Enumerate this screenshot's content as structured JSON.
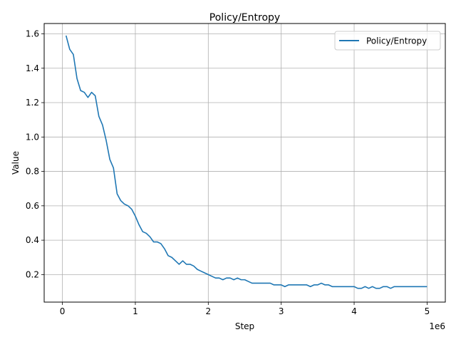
{
  "chart_data": {
    "type": "line",
    "title": "Policy/Entropy",
    "xlabel": "Step",
    "ylabel": "Value",
    "x_offset_label": "1e6",
    "xlim": [
      -250000,
      5250000
    ],
    "ylim": [
      0.04,
      1.66
    ],
    "xticks": [
      0,
      1000000,
      2000000,
      3000000,
      4000000,
      5000000
    ],
    "xtick_labels": [
      "0",
      "1",
      "2",
      "3",
      "4",
      "5"
    ],
    "yticks": [
      0.2,
      0.4,
      0.6,
      0.8,
      1.0,
      1.2,
      1.4,
      1.6
    ],
    "ytick_labels": [
      "0.2",
      "0.4",
      "0.6",
      "0.8",
      "1.0",
      "1.2",
      "1.4",
      "1.6"
    ],
    "grid": true,
    "legend_position": "top-right",
    "series": [
      {
        "name": "Policy/Entropy",
        "color": "#1f77b4",
        "x": [
          50000,
          100000,
          150000,
          200000,
          250000,
          300000,
          350000,
          400000,
          450000,
          500000,
          550000,
          600000,
          650000,
          700000,
          750000,
          800000,
          850000,
          900000,
          950000,
          1000000,
          1050000,
          1100000,
          1150000,
          1200000,
          1250000,
          1300000,
          1350000,
          1400000,
          1450000,
          1500000,
          1550000,
          1600000,
          1650000,
          1700000,
          1750000,
          1800000,
          1850000,
          1900000,
          1950000,
          2000000,
          2050000,
          2100000,
          2150000,
          2200000,
          2250000,
          2300000,
          2350000,
          2400000,
          2450000,
          2500000,
          2550000,
          2600000,
          2650000,
          2700000,
          2750000,
          2800000,
          2850000,
          2900000,
          2950000,
          3000000,
          3050000,
          3100000,
          3150000,
          3200000,
          3250000,
          3300000,
          3350000,
          3400000,
          3450000,
          3500000,
          3550000,
          3600000,
          3650000,
          3700000,
          3750000,
          3800000,
          3850000,
          3900000,
          3950000,
          4000000,
          4050000,
          4100000,
          4150000,
          4200000,
          4250000,
          4300000,
          4350000,
          4400000,
          4450000,
          4500000,
          4550000,
          4600000,
          4650000,
          4700000,
          4750000,
          4800000,
          4850000,
          4900000,
          4950000,
          5000000
        ],
        "values": [
          1.59,
          1.51,
          1.48,
          1.34,
          1.27,
          1.26,
          1.23,
          1.26,
          1.24,
          1.12,
          1.07,
          0.98,
          0.87,
          0.82,
          0.67,
          0.63,
          0.61,
          0.6,
          0.58,
          0.54,
          0.49,
          0.45,
          0.44,
          0.42,
          0.39,
          0.39,
          0.38,
          0.35,
          0.31,
          0.3,
          0.28,
          0.26,
          0.28,
          0.26,
          0.26,
          0.25,
          0.23,
          0.22,
          0.21,
          0.2,
          0.19,
          0.18,
          0.18,
          0.17,
          0.18,
          0.18,
          0.17,
          0.18,
          0.17,
          0.17,
          0.16,
          0.15,
          0.15,
          0.15,
          0.15,
          0.15,
          0.15,
          0.14,
          0.14,
          0.14,
          0.13,
          0.14,
          0.14,
          0.14,
          0.14,
          0.14,
          0.14,
          0.13,
          0.14,
          0.14,
          0.15,
          0.14,
          0.14,
          0.13,
          0.13,
          0.13,
          0.13,
          0.13,
          0.13,
          0.13,
          0.12,
          0.12,
          0.13,
          0.12,
          0.13,
          0.12,
          0.12,
          0.13,
          0.13,
          0.12,
          0.13,
          0.13,
          0.13,
          0.13,
          0.13,
          0.13,
          0.13,
          0.13,
          0.13,
          0.13
        ]
      }
    ]
  }
}
